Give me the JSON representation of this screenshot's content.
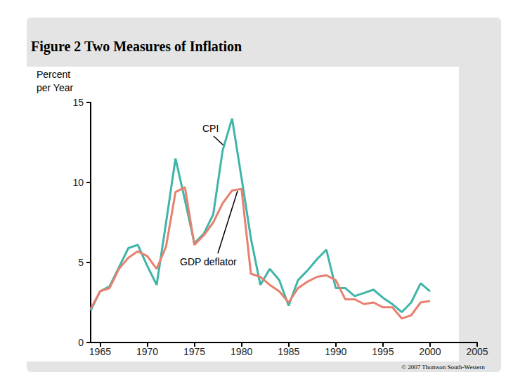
{
  "chart_data": {
    "type": "line",
    "title": "Figure 2 Two Measures of Inflation",
    "ylabel": "Percent per Year",
    "annotations": [
      "CPI",
      "GDP deflator"
    ],
    "source": "© 2007 Thomson South-Western",
    "x": [
      1964,
      1965,
      1966,
      1967,
      1968,
      1969,
      1970,
      1971,
      1972,
      1973,
      1974,
      1975,
      1976,
      1977,
      1978,
      1979,
      1980,
      1981,
      1982,
      1983,
      1984,
      1985,
      1986,
      1987,
      1988,
      1989,
      1990,
      1991,
      1992,
      1993,
      1994,
      1995,
      1996,
      1997,
      1998,
      1999,
      2000
    ],
    "series": [
      {
        "name": "CPI",
        "color": "#3fb5a8",
        "values": [
          2.0,
          3.2,
          3.5,
          4.7,
          5.9,
          6.1,
          4.8,
          3.6,
          7.5,
          11.5,
          8.9,
          6.2,
          6.8,
          8.0,
          12.0,
          14.0,
          10.3,
          6.5,
          3.6,
          4.6,
          3.9,
          2.3,
          3.9,
          4.5,
          5.2,
          5.8,
          3.4,
          3.4,
          2.9,
          3.1,
          3.3,
          2.8,
          2.4,
          1.9,
          2.5,
          3.7,
          3.2
        ]
      },
      {
        "name": "GDP deflator",
        "color": "#e8806f",
        "values": [
          2.1,
          3.2,
          3.4,
          4.6,
          5.3,
          5.7,
          5.4,
          4.6,
          6.0,
          9.4,
          9.7,
          6.1,
          6.7,
          7.5,
          8.7,
          9.5,
          9.6,
          4.3,
          4.1,
          3.6,
          3.2,
          2.5,
          3.4,
          3.8,
          4.1,
          4.2,
          3.9,
          2.7,
          2.7,
          2.4,
          2.5,
          2.2,
          2.2,
          1.5,
          1.7,
          2.5,
          2.6
        ]
      }
    ],
    "xlim": [
      1964,
      2005
    ],
    "xticks": [
      1965,
      1970,
      1975,
      1980,
      1985,
      1990,
      1995,
      2000,
      2005
    ],
    "ylim": [
      0,
      15
    ],
    "yticks": [
      0,
      5,
      10,
      15
    ],
    "grid": false
  }
}
